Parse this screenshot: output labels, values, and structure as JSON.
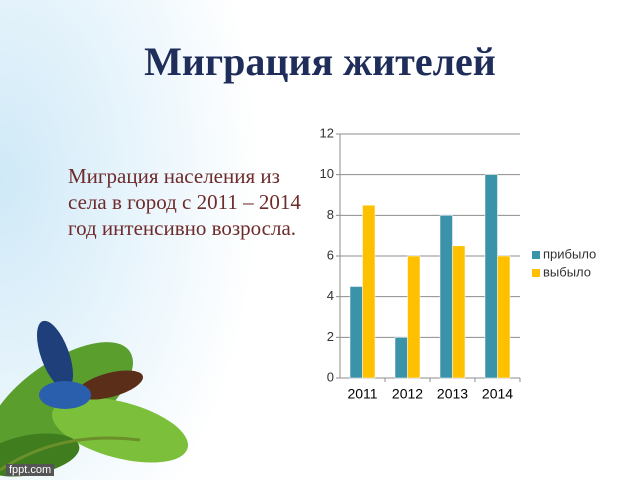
{
  "title": "Миграция жителей",
  "text": "Миграция населения из села в город с 2011 – 2014 год интенсивно возросла.",
  "watermark": "fppt.com",
  "chart_data": {
    "type": "bar",
    "categories": [
      "2011",
      "2012",
      "2013",
      "2014"
    ],
    "series": [
      {
        "name": "прибыло",
        "color": "#3a93a8",
        "values": [
          4.5,
          2,
          8,
          10
        ]
      },
      {
        "name": "выбыло",
        "color": "#ffc000",
        "values": [
          8.5,
          6,
          6.5,
          6
        ]
      }
    ],
    "ylim": [
      0,
      12
    ],
    "yticks": [
      0,
      2,
      4,
      6,
      8,
      10,
      12
    ],
    "grid": true,
    "legend": "right"
  }
}
